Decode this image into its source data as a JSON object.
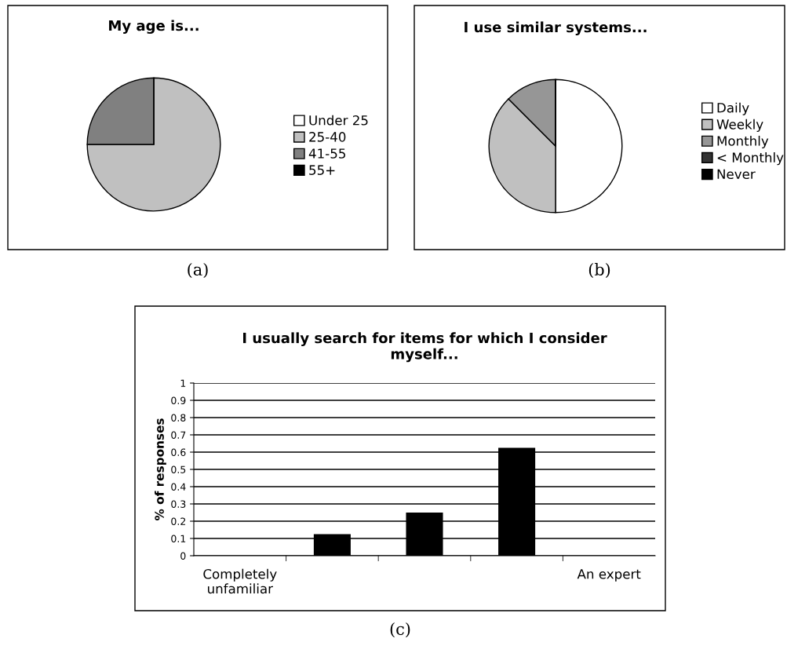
{
  "chart_data": [
    {
      "type": "pie",
      "title": "My age is...",
      "categories": [
        "Under 25",
        "25-40",
        "41-55",
        "55+"
      ],
      "values": [
        0,
        75,
        25,
        0
      ],
      "colors": [
        "#ffffff",
        "#c0c0c0",
        "#808080",
        "#000000"
      ],
      "legend": "right",
      "annotations": [
        "(a)"
      ]
    },
    {
      "type": "pie",
      "title": "I use similar systems...",
      "categories": [
        "Daily",
        "Weekly",
        "Monthly",
        "< Monthly",
        "Never"
      ],
      "values": [
        50,
        37.5,
        12.5,
        0,
        0
      ],
      "colors": [
        "#ffffff",
        "#c0c0c0",
        "#969696",
        "#333333",
        "#000000"
      ],
      "legend": "right",
      "annotations": [
        "(b)"
      ]
    },
    {
      "type": "bar",
      "title": "I usually search for items for which I consider\nmyself...",
      "ylabel": "% of responses",
      "categories": [
        "Completely\nunfamiliar",
        null,
        null,
        null,
        "An expert"
      ],
      "values": [
        0,
        0.125,
        0.25,
        0.625,
        0
      ],
      "color": "#000000",
      "ylim": [
        0,
        1
      ],
      "yticks": [
        0,
        0.1,
        0.2,
        0.3,
        0.4,
        0.5,
        0.6,
        0.7,
        0.8,
        0.9,
        1
      ],
      "grid": "y",
      "legend": false,
      "annotations": [
        "(c)"
      ]
    }
  ]
}
